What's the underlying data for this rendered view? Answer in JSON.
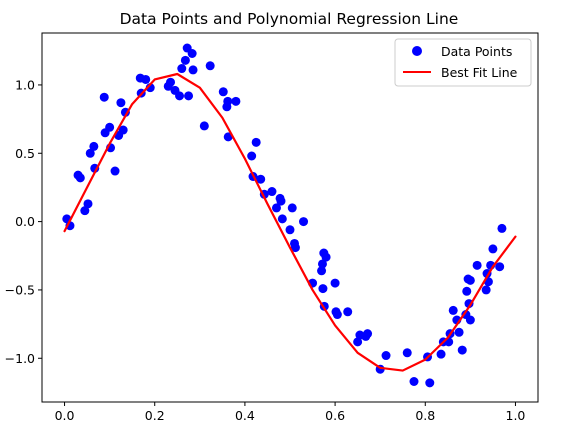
{
  "chart_data": {
    "type": "scatter",
    "title": "Data Points and Polynomial Regression Line",
    "xlabel": "",
    "ylabel": "",
    "xlim": [
      -0.05,
      1.05
    ],
    "ylim": [
      -1.32,
      1.38
    ],
    "x_ticks": [
      0.0,
      0.2,
      0.4,
      0.6,
      0.8,
      1.0
    ],
    "x_tick_labels": [
      "0.0",
      "0.2",
      "0.4",
      "0.6",
      "0.8",
      "1.0"
    ],
    "y_ticks": [
      -1.0,
      -0.5,
      0.0,
      0.5,
      1.0
    ],
    "y_tick_labels": [
      "−1.0",
      "−0.5",
      "0.0",
      "0.5",
      "1.0"
    ],
    "grid": false,
    "legend_position": "top-right",
    "series": [
      {
        "name": "Data Points",
        "kind": "scatter",
        "color": "#0000ff",
        "points": [
          [
            0.005,
            0.02
          ],
          [
            0.012,
            -0.03
          ],
          [
            0.03,
            0.34
          ],
          [
            0.035,
            0.32
          ],
          [
            0.045,
            0.08
          ],
          [
            0.052,
            0.13
          ],
          [
            0.057,
            0.5
          ],
          [
            0.065,
            0.55
          ],
          [
            0.067,
            0.39
          ],
          [
            0.088,
            0.91
          ],
          [
            0.09,
            0.65
          ],
          [
            0.1,
            0.69
          ],
          [
            0.102,
            0.54
          ],
          [
            0.112,
            0.37
          ],
          [
            0.12,
            0.63
          ],
          [
            0.125,
            0.87
          ],
          [
            0.13,
            0.67
          ],
          [
            0.135,
            0.8
          ],
          [
            0.168,
            1.05
          ],
          [
            0.17,
            0.94
          ],
          [
            0.18,
            1.04
          ],
          [
            0.19,
            0.98
          ],
          [
            0.23,
            0.99
          ],
          [
            0.235,
            1.02
          ],
          [
            0.245,
            0.96
          ],
          [
            0.255,
            0.92
          ],
          [
            0.26,
            1.12
          ],
          [
            0.268,
            1.18
          ],
          [
            0.272,
            1.27
          ],
          [
            0.275,
            0.92
          ],
          [
            0.283,
            1.23
          ],
          [
            0.285,
            1.11
          ],
          [
            0.31,
            0.7
          ],
          [
            0.323,
            1.14
          ],
          [
            0.352,
            0.95
          ],
          [
            0.36,
            0.84
          ],
          [
            0.362,
            0.88
          ],
          [
            0.363,
            0.62
          ],
          [
            0.38,
            0.88
          ],
          [
            0.415,
            0.48
          ],
          [
            0.418,
            0.33
          ],
          [
            0.425,
            0.58
          ],
          [
            0.435,
            0.31
          ],
          [
            0.443,
            0.2
          ],
          [
            0.46,
            0.22
          ],
          [
            0.47,
            0.1
          ],
          [
            0.478,
            0.17
          ],
          [
            0.48,
            0.15
          ],
          [
            0.483,
            0.02
          ],
          [
            0.5,
            -0.06
          ],
          [
            0.505,
            0.1
          ],
          [
            0.51,
            -0.16
          ],
          [
            0.512,
            -0.19
          ],
          [
            0.53,
            0.0
          ],
          [
            0.55,
            -0.45
          ],
          [
            0.57,
            -0.36
          ],
          [
            0.572,
            -0.31
          ],
          [
            0.573,
            -0.49
          ],
          [
            0.575,
            -0.23
          ],
          [
            0.576,
            -0.62
          ],
          [
            0.58,
            -0.26
          ],
          [
            0.6,
            -0.45
          ],
          [
            0.602,
            -0.66
          ],
          [
            0.605,
            -0.68
          ],
          [
            0.628,
            -0.66
          ],
          [
            0.65,
            -0.88
          ],
          [
            0.655,
            -0.83
          ],
          [
            0.668,
            -0.84
          ],
          [
            0.672,
            -0.82
          ],
          [
            0.7,
            -1.08
          ],
          [
            0.713,
            -0.98
          ],
          [
            0.76,
            -0.96
          ],
          [
            0.775,
            -1.17
          ],
          [
            0.805,
            -0.99
          ],
          [
            0.81,
            -1.18
          ],
          [
            0.835,
            -0.97
          ],
          [
            0.84,
            -0.88
          ],
          [
            0.852,
            -0.88
          ],
          [
            0.855,
            -0.82
          ],
          [
            0.862,
            -0.65
          ],
          [
            0.87,
            -0.72
          ],
          [
            0.875,
            -0.81
          ],
          [
            0.882,
            -0.94
          ],
          [
            0.89,
            -0.68
          ],
          [
            0.892,
            -0.51
          ],
          [
            0.895,
            -0.42
          ],
          [
            0.897,
            -0.6
          ],
          [
            0.9,
            -0.72
          ],
          [
            0.9,
            -0.43
          ],
          [
            0.915,
            -0.32
          ],
          [
            0.935,
            -0.5
          ],
          [
            0.937,
            -0.38
          ],
          [
            0.94,
            -0.44
          ],
          [
            0.945,
            -0.32
          ],
          [
            0.95,
            -0.2
          ],
          [
            0.965,
            -0.33
          ],
          [
            0.97,
            -0.05
          ]
        ]
      },
      {
        "name": "Best Fit Line",
        "kind": "line",
        "color": "#ff0000",
        "points": [
          [
            0.0,
            -0.07
          ],
          [
            0.05,
            0.25
          ],
          [
            0.1,
            0.57
          ],
          [
            0.15,
            0.86
          ],
          [
            0.2,
            1.04
          ],
          [
            0.25,
            1.08
          ],
          [
            0.3,
            0.98
          ],
          [
            0.35,
            0.76
          ],
          [
            0.4,
            0.46
          ],
          [
            0.45,
            0.13
          ],
          [
            0.5,
            -0.19
          ],
          [
            0.55,
            -0.5
          ],
          [
            0.6,
            -0.76
          ],
          [
            0.65,
            -0.96
          ],
          [
            0.7,
            -1.07
          ],
          [
            0.75,
            -1.09
          ],
          [
            0.8,
            -1.01
          ],
          [
            0.85,
            -0.85
          ],
          [
            0.9,
            -0.61
          ],
          [
            0.95,
            -0.33
          ],
          [
            1.0,
            -0.11
          ]
        ]
      }
    ]
  }
}
